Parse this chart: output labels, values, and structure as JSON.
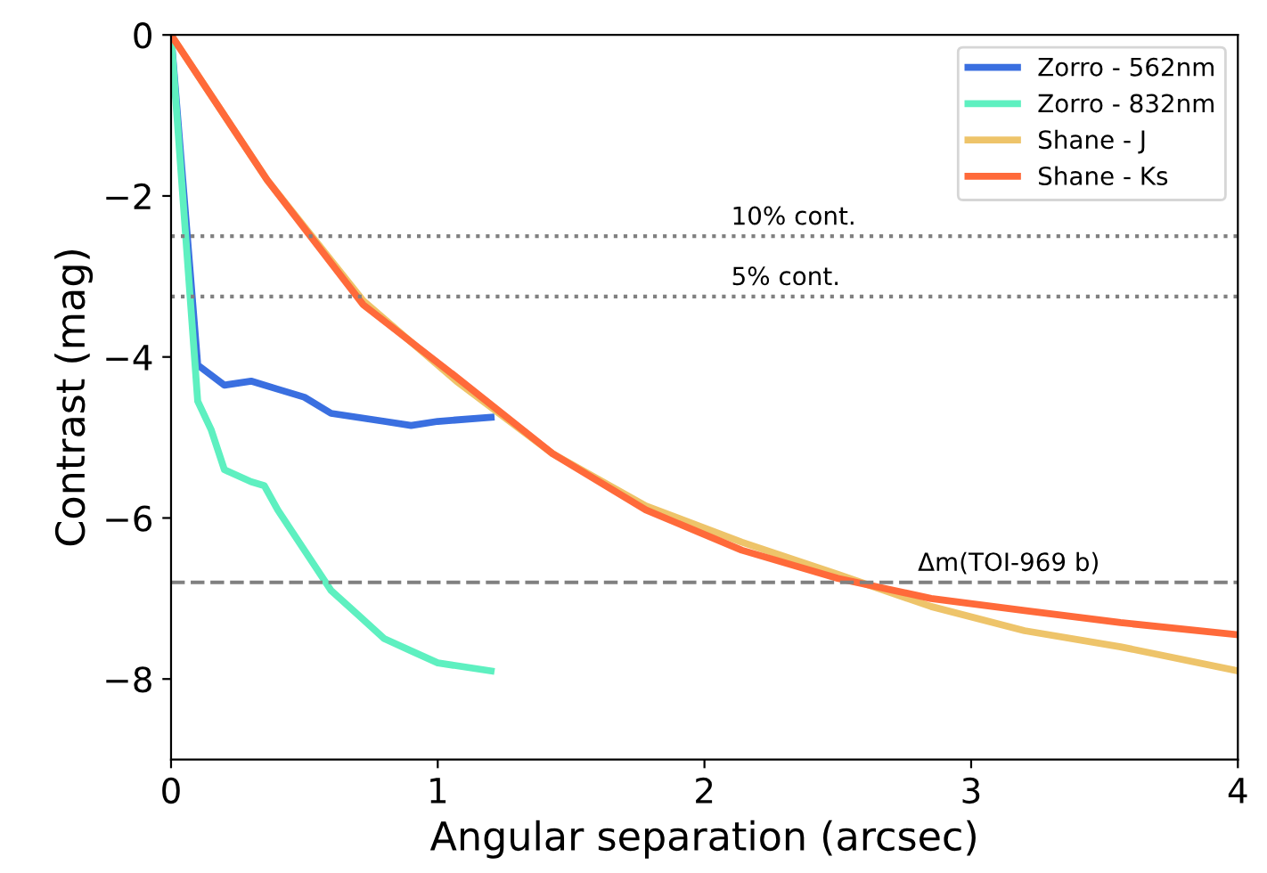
{
  "chart_data": {
    "type": "line",
    "xlabel": "Angular separation (arcsec)",
    "ylabel": "Contrast (mag)",
    "xlim": [
      0,
      4
    ],
    "xticks": [
      0,
      1,
      2,
      3,
      4
    ],
    "ylim": [
      -9,
      0
    ],
    "yticks": [
      {
        "value": -8,
        "label": "−8"
      },
      {
        "value": -6,
        "label": "−6"
      },
      {
        "value": -4,
        "label": "−4"
      },
      {
        "value": -2,
        "label": "−2"
      },
      0
    ],
    "grid": false,
    "legend": "top right",
    "line_style": "solid",
    "marker": "none",
    "series": [
      {
        "name": "Zorro - 562nm",
        "color": "#3a6fe0",
        "x": [
          0,
          0.1,
          0.2,
          0.3,
          0.4,
          0.5,
          0.6,
          0.7,
          0.8,
          0.9,
          1.0,
          1.2
        ],
        "values": [
          0,
          -4.1,
          -4.35,
          -4.3,
          -4.4,
          -4.5,
          -4.7,
          -4.75,
          -4.8,
          -4.85,
          -4.8,
          -4.75
        ]
      },
      {
        "name": "Zorro - 832nm",
        "color": "#5ef0c0",
        "x": [
          0,
          0.1,
          0.15,
          0.2,
          0.3,
          0.35,
          0.4,
          0.5,
          0.6,
          0.7,
          0.8,
          0.9,
          1.0,
          1.2
        ],
        "values": [
          0,
          -4.55,
          -4.9,
          -5.4,
          -5.55,
          -5.6,
          -5.9,
          -6.4,
          -6.9,
          -7.2,
          -7.5,
          -7.65,
          -7.8,
          -7.9
        ]
      },
      {
        "name": "Shane - J",
        "color": "#eec46a",
        "x": [
          0,
          0.36,
          0.72,
          1.07,
          1.43,
          1.78,
          2.14,
          2.5,
          2.85,
          3.2,
          3.56,
          4.0
        ],
        "values": [
          0,
          -1.8,
          -3.3,
          -4.3,
          -5.2,
          -5.85,
          -6.3,
          -6.7,
          -7.1,
          -7.4,
          -7.6,
          -7.9
        ]
      },
      {
        "name": "Shane - Ks",
        "color": "#ff6a3a",
        "x": [
          0,
          0.36,
          0.72,
          1.07,
          1.43,
          1.78,
          2.14,
          2.5,
          2.85,
          3.2,
          3.56,
          4.0
        ],
        "values": [
          0,
          -1.8,
          -3.35,
          -4.25,
          -5.2,
          -5.9,
          -6.4,
          -6.75,
          -7.0,
          -7.15,
          -7.3,
          -7.45
        ]
      }
    ],
    "ref_lines": [
      {
        "axis": "y",
        "value": -2.5,
        "label": "10% cont.",
        "color": "#808080",
        "line_style": "dotted"
      },
      {
        "axis": "y",
        "value": -3.25,
        "label": "5% cont.",
        "color": "#808080",
        "line_style": "dotted"
      },
      {
        "axis": "y",
        "value": -6.8,
        "label": "Δm(TOI-969 b)",
        "color": "#808080",
        "line_style": "dashed"
      }
    ]
  }
}
